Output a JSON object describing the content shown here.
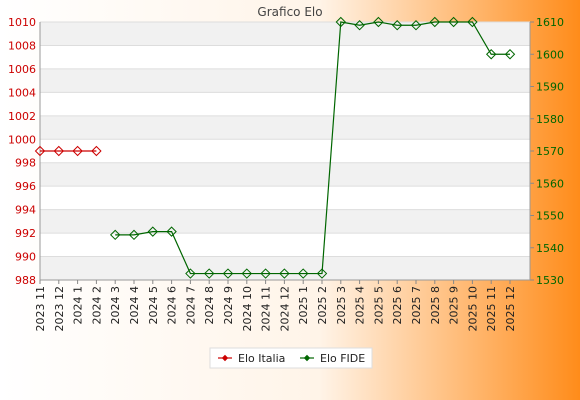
{
  "chart_data": {
    "type": "line",
    "title": "Grafico Elo",
    "categories": [
      "2023 11",
      "2023 12",
      "2024 1",
      "2024 2",
      "2024 3",
      "2024 4",
      "2024 5",
      "2024 6",
      "2024 7",
      "2024 8",
      "2024 9",
      "2024 10",
      "2024 11",
      "2024 12",
      "2025 1",
      "2025 2",
      "2025 3",
      "2025 4",
      "2025 5",
      "2025 6",
      "2025 7",
      "2025 8",
      "2025 9",
      "2025 10",
      "2025 11",
      "2025 12"
    ],
    "y_left": {
      "range": [
        988,
        1010
      ],
      "ticks": [
        "988",
        "990",
        "992",
        "994",
        "996",
        "998",
        "1000",
        "1002",
        "1004",
        "1006",
        "1008",
        "1010"
      ],
      "color": "#cc0000"
    },
    "y_right": {
      "range": [
        1530,
        1610
      ],
      "ticks": [
        "1530",
        "1540",
        "1550",
        "1560",
        "1570",
        "1580",
        "1590",
        "1600",
        "1610"
      ],
      "color": "#006600"
    },
    "series": [
      {
        "name": "Elo Italia",
        "axis": "left",
        "color": "#cc0000",
        "values": [
          999,
          999,
          999,
          999,
          null,
          null,
          null,
          null,
          null,
          null,
          null,
          null,
          null,
          null,
          null,
          null,
          null,
          null,
          null,
          null,
          null,
          null,
          null,
          null,
          null,
          null
        ]
      },
      {
        "name": "Elo FIDE",
        "axis": "right",
        "color": "#006600",
        "values": [
          null,
          null,
          null,
          null,
          1544,
          1544,
          1545,
          1545,
          1532,
          1532,
          1532,
          1532,
          1532,
          1532,
          1532,
          1532,
          1610,
          1609,
          1610,
          1609,
          1609,
          1610,
          1610,
          1610,
          1600,
          1600
        ]
      }
    ],
    "grid": true,
    "legend": "bottom-center",
    "background": {
      "from": "#ffffff",
      "to": "#ff8c1a"
    }
  }
}
